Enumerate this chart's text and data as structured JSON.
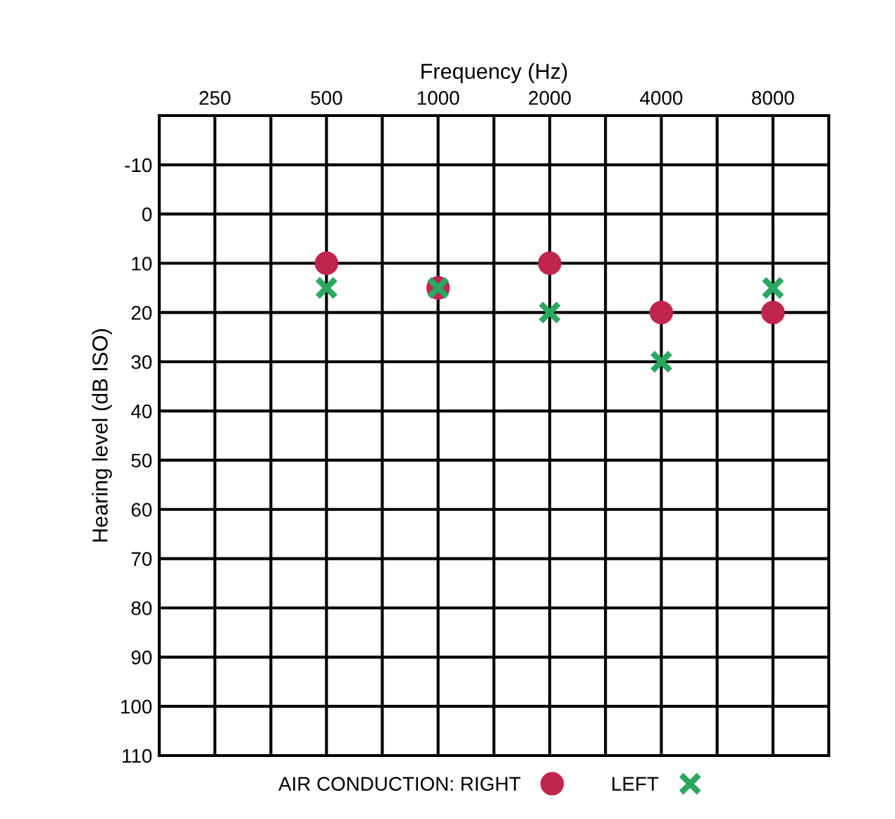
{
  "chart_data": {
    "type": "scatter",
    "xlabel": "Frequency (Hz)",
    "ylabel": "Hearing level (dB ISO)",
    "log": "x",
    "x": [
      500,
      1000,
      2000,
      4000,
      8000
    ],
    "series": [
      {
        "name": "AIR CONDUCTION: RIGHT",
        "color": "#c0254f",
        "marker": "circle",
        "values": [
          10,
          15,
          10,
          20,
          20
        ]
      },
      {
        "name": "LEFT",
        "color": "#2aa860",
        "marker": "cross",
        "values": [
          15,
          15,
          20,
          30,
          15
        ]
      }
    ],
    "xlim": [
      177,
      11314
    ],
    "xticks": [
      250,
      {
        "value": 354,
        "label": null
      },
      500,
      {
        "value": 707,
        "label": null
      },
      1000,
      {
        "value": 1414,
        "label": null
      },
      2000,
      {
        "value": 2828,
        "label": null
      },
      4000,
      {
        "value": 5657,
        "label": null
      },
      8000
    ],
    "ylim": [
      110,
      -20
    ],
    "yticks": [
      -10,
      0,
      10,
      20,
      30,
      40,
      50,
      60,
      70,
      80,
      90,
      100,
      110
    ],
    "grid": true,
    "legend": "bottom"
  }
}
